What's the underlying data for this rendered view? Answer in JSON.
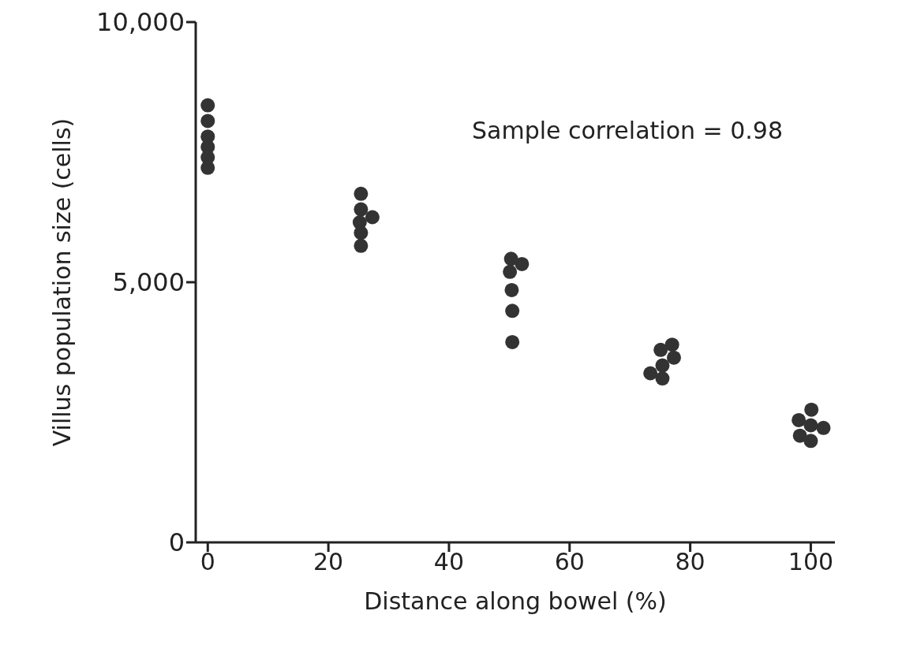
{
  "chart_data": {
    "type": "scatter",
    "xlabel": "Distance along bowel (%)",
    "ylabel": "Villus population size  (cells)",
    "annotations": [
      "Sample correlation = 0.98"
    ],
    "series": [
      {
        "color": "#333333",
        "x": [
          0,
          0,
          0,
          0,
          0,
          0,
          25.4,
          25.4,
          27.3,
          25.2,
          25.4,
          25.4,
          50.3,
          52.1,
          50.1,
          50.4,
          50.5,
          50.5,
          77.0,
          75.1,
          77.3,
          75.4,
          73.4,
          75.4,
          100.1,
          98.0,
          100.0,
          102.1,
          98.2,
          100.0
        ],
        "values": [
          8400,
          8100,
          7800,
          7600,
          7400,
          7200,
          6700,
          6400,
          6250,
          6150,
          5950,
          5700,
          5450,
          5350,
          5200,
          4850,
          4450,
          3850,
          3800,
          3700,
          3550,
          3400,
          3250,
          3150,
          2550,
          2350,
          2250,
          2200,
          2050,
          1950
        ]
      }
    ],
    "xlim": [
      -2,
      104
    ],
    "xticks": [
      0,
      20,
      40,
      60,
      80,
      100
    ],
    "ylim": [
      0,
      10000
    ],
    "yticks": [
      0,
      {
        "value": 5000,
        "label": "5,000"
      },
      {
        "value": 10000,
        "label": "10,000"
      }
    ],
    "grid": false,
    "marker": "circle"
  }
}
